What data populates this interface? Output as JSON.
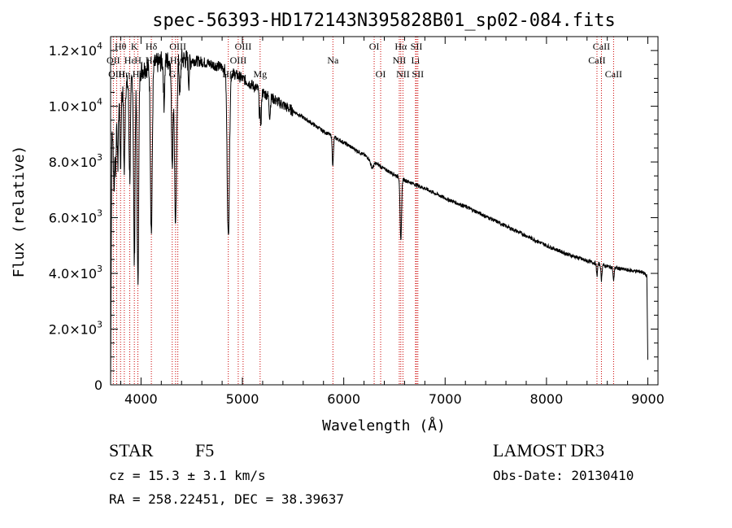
{
  "chart_data": {
    "type": "line",
    "title": "spec-56393-HD172143N395828B01_sp02-084.fits",
    "xlabel": "Wavelength (Å)",
    "ylabel": "Flux (relative)",
    "xlim": [
      3700,
      9100
    ],
    "ylim": [
      0,
      12500
    ],
    "x_ticks": [
      4000,
      5000,
      6000,
      7000,
      8000,
      9000
    ],
    "x_tick_labels": [
      "4000",
      "5000",
      "6000",
      "7000",
      "8000",
      "9000"
    ],
    "y_ticks": [
      {
        "value": 0,
        "mant": "0",
        "exp": ""
      },
      {
        "value": 2000,
        "mant": "2.0×10",
        "exp": "3"
      },
      {
        "value": 4000,
        "mant": "4.0×10",
        "exp": "3"
      },
      {
        "value": 6000,
        "mant": "6.0×10",
        "exp": "3"
      },
      {
        "value": 8000,
        "mant": "8.0×10",
        "exp": "3"
      },
      {
        "value": 10000,
        "mant": "1.0×10",
        "exp": "4"
      },
      {
        "value": 12000,
        "mant": "1.2×10",
        "exp": "4"
      }
    ],
    "continuum": [
      [
        3700,
        0
      ],
      [
        3712,
        9000
      ],
      [
        3740,
        9600
      ],
      [
        3800,
        10400
      ],
      [
        3900,
        11000
      ],
      [
        4000,
        11300
      ],
      [
        4200,
        11600
      ],
      [
        4400,
        11700
      ],
      [
        4600,
        11600
      ],
      [
        4800,
        11400
      ],
      [
        5000,
        11000
      ],
      [
        5200,
        10500
      ],
      [
        5400,
        10050
      ],
      [
        5600,
        9600
      ],
      [
        5800,
        9100
      ],
      [
        6000,
        8700
      ],
      [
        6200,
        8250
      ],
      [
        6400,
        7750
      ],
      [
        6600,
        7350
      ],
      [
        6800,
        7050
      ],
      [
        7000,
        6700
      ],
      [
        7200,
        6400
      ],
      [
        7400,
        6050
      ],
      [
        7600,
        5700
      ],
      [
        7800,
        5350
      ],
      [
        8000,
        5000
      ],
      [
        8200,
        4700
      ],
      [
        8400,
        4450
      ],
      [
        8600,
        4250
      ],
      [
        8800,
        4120
      ],
      [
        8950,
        4050
      ],
      [
        8990,
        3900
      ],
      [
        9000,
        900
      ]
    ],
    "absorption": [
      {
        "c": 3734,
        "d": 2500,
        "w": 6
      },
      {
        "c": 3750,
        "d": 2000,
        "w": 5
      },
      {
        "c": 3771,
        "d": 2200,
        "w": 5
      },
      {
        "c": 3798,
        "d": 2600,
        "w": 5
      },
      {
        "c": 3835,
        "d": 3000,
        "w": 6
      },
      {
        "c": 3889,
        "d": 3500,
        "w": 7
      },
      {
        "c": 3934,
        "d": 6800,
        "w": 7
      },
      {
        "c": 3969,
        "d": 7500,
        "w": 8
      },
      {
        "c": 4102,
        "d": 6000,
        "w": 9
      },
      {
        "c": 4227,
        "d": 1500,
        "w": 6
      },
      {
        "c": 4308,
        "d": 3600,
        "w": 8
      },
      {
        "c": 4341,
        "d": 6000,
        "w": 10
      },
      {
        "c": 4384,
        "d": 1300,
        "w": 6
      },
      {
        "c": 4471,
        "d": 800,
        "w": 5
      },
      {
        "c": 4861,
        "d": 6000,
        "w": 11
      },
      {
        "c": 5169,
        "d": 900,
        "w": 5
      },
      {
        "c": 5183,
        "d": 1200,
        "w": 5
      },
      {
        "c": 5270,
        "d": 700,
        "w": 6
      },
      {
        "c": 5890,
        "d": 700,
        "w": 5
      },
      {
        "c": 5896,
        "d": 500,
        "w": 5
      },
      {
        "c": 6280,
        "d": 250,
        "w": 15
      },
      {
        "c": 6563,
        "d": 2300,
        "w": 7
      },
      {
        "c": 8498,
        "d": 450,
        "w": 5
      },
      {
        "c": 8542,
        "d": 550,
        "w": 5
      },
      {
        "c": 8662,
        "d": 500,
        "w": 5
      }
    ],
    "line_markers": [
      {
        "label": "Hθ",
        "x": 3798,
        "row": 1
      },
      {
        "label": "OII",
        "x": 3727,
        "row": 2
      },
      {
        "label": "OIII",
        "x": 3760,
        "row": 3
      },
      {
        "label": "Hη",
        "x": 3835,
        "row": 3
      },
      {
        "label": "Hε",
        "x": 3889,
        "row": 2
      },
      {
        "label": "K",
        "x": 3934,
        "row": 1
      },
      {
        "label": "H",
        "x": 3969,
        "row": 2
      },
      {
        "label": "Hε",
        "x": 3970,
        "row": 3
      },
      {
        "label": "Hδ",
        "x": 4102,
        "row": 1
      },
      {
        "label": "Hδ",
        "x": 4102,
        "row": 2
      },
      {
        "label": "OIII",
        "x": 4363,
        "row": 1
      },
      {
        "label": "G",
        "x": 4308,
        "row": 3
      },
      {
        "label": "Hγ",
        "x": 4341,
        "row": 2
      },
      {
        "label": "Hβ",
        "x": 4861,
        "row": 3
      },
      {
        "label": "OIII",
        "x": 4959,
        "row": 2
      },
      {
        "label": "OIII",
        "x": 5007,
        "row": 1
      },
      {
        "label": "Mg",
        "x": 5175,
        "row": 3
      },
      {
        "label": "Na",
        "x": 5893,
        "row": 2
      },
      {
        "label": "OI",
        "x": 6300,
        "row": 1
      },
      {
        "label": "OI",
        "x": 6364,
        "row": 3
      },
      {
        "label": "Hα",
        "x": 6563,
        "row": 1
      },
      {
        "label": "NII",
        "x": 6548,
        "row": 2
      },
      {
        "label": "NII",
        "x": 6584,
        "row": 3
      },
      {
        "label": "SII",
        "x": 6717,
        "row": 1
      },
      {
        "label": "Li",
        "x": 6708,
        "row": 2
      },
      {
        "label": "SII",
        "x": 6731,
        "row": 3
      },
      {
        "label": "CaII",
        "x": 8542,
        "row": 1
      },
      {
        "label": "CaII",
        "x": 8498,
        "row": 2
      },
      {
        "label": "CaII",
        "x": 8662,
        "row": 3
      }
    ],
    "marker_color": "#cc0000"
  },
  "info": {
    "class_label": "STAR",
    "subclass": "F5",
    "redshift": "cz = 15.3 ± 3.1 km/s",
    "coords": "RA = 258.22451, DEC =  38.39637",
    "survey": "LAMOST DR3",
    "obs_date": "Obs-Date: 20130410"
  }
}
